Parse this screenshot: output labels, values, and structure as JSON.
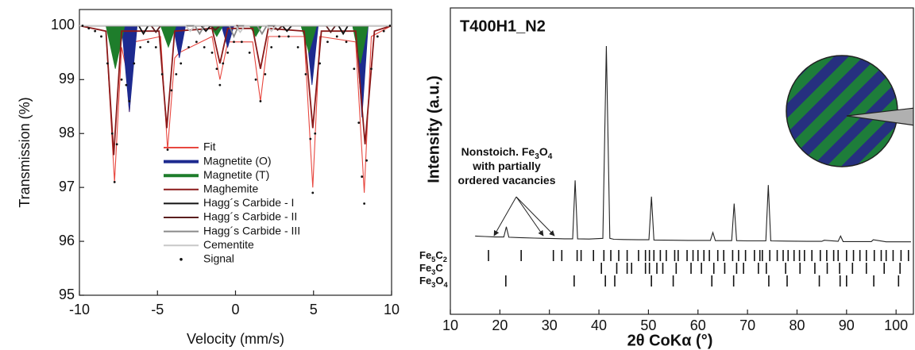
{
  "chart_data": [
    {
      "type": "line",
      "x_label": "Velocity (mm/s)",
      "y_label": "Transmission (%)",
      "xlim": [
        -10,
        10
      ],
      "ylim": [
        95,
        100.3
      ],
      "xticks": [
        -10,
        -5,
        0,
        5,
        10
      ],
      "yticks": [
        95,
        96,
        97,
        98,
        99,
        100
      ],
      "legend": "center",
      "series": [
        {
          "name": "Fit",
          "color": "#e8473f",
          "style": "line",
          "x": [
            -10,
            -8.3,
            -7.75,
            -7.3,
            -7.0,
            -6.8,
            -6.5,
            -4.8,
            -4.35,
            -3.9,
            -3.6,
            -1.5,
            -1.0,
            -0.5,
            1.1,
            1.6,
            2.1,
            4.4,
            4.95,
            5.4,
            7.7,
            8.25,
            8.7,
            10
          ],
          "values": [
            100,
            99.9,
            97.1,
            99.6,
            99.2,
            98.4,
            99.7,
            99.8,
            97.7,
            99.4,
            99.5,
            99.8,
            99.0,
            99.7,
            99.7,
            98.6,
            99.8,
            99.8,
            97.0,
            99.8,
            99.7,
            96.9,
            99.8,
            100
          ]
        },
        {
          "name": "Magnetite (O)",
          "color": "#1d2a8f",
          "style": "fill",
          "x": [
            -10,
            -7.3,
            -6.8,
            -6.3,
            -4.0,
            -3.6,
            -3.2,
            -0.9,
            -0.5,
            -0.1,
            4.5,
            4.9,
            5.3,
            7.7,
            8.1,
            8.5,
            10
          ],
          "values": [
            100,
            100,
            98.4,
            100,
            100,
            99.4,
            100,
            100,
            99.6,
            100,
            100,
            98.9,
            100,
            100,
            98.3,
            100,
            100
          ]
        },
        {
          "name": "Magnetite (T)",
          "color": "#1e7d2b",
          "style": "fill",
          "x": [
            -10,
            -8.3,
            -7.7,
            -7.1,
            -4.8,
            -4.3,
            -3.8,
            -1.6,
            -1.2,
            -0.8,
            0.9,
            1.3,
            1.7,
            4.2,
            4.7,
            5.2,
            7.5,
            8.0,
            8.5,
            10
          ],
          "values": [
            100,
            100,
            99.2,
            100,
            100,
            99.6,
            100,
            100,
            99.8,
            100,
            100,
            99.8,
            100,
            100,
            99.5,
            100,
            100,
            99.3,
            100,
            100
          ]
        },
        {
          "name": "Maghemite",
          "color": "#8b1a1a",
          "style": "line",
          "x": [
            -10,
            -8.3,
            -7.8,
            -7.3,
            -4.9,
            -4.4,
            -3.9,
            -1.5,
            -1.0,
            -0.5,
            1.1,
            1.6,
            2.1,
            4.4,
            4.95,
            5.5,
            7.7,
            8.3,
            8.9,
            10
          ],
          "values": [
            100,
            99.9,
            97.6,
            99.9,
            99.9,
            98.1,
            99.9,
            99.95,
            99.3,
            99.95,
            99.95,
            99.2,
            99.95,
            99.9,
            98.1,
            99.9,
            99.9,
            97.8,
            99.9,
            100
          ]
        },
        {
          "name": "Hagg´s Carbide - I",
          "color": "#111111",
          "style": "line",
          "x": [
            -10,
            -6.2,
            -5.9,
            -5.6,
            -2.2,
            -1.9,
            -1.6,
            3.0,
            3.3,
            3.6,
            6.6,
            6.9,
            7.2,
            10
          ],
          "values": [
            100,
            100,
            99.85,
            100,
            100,
            99.9,
            100,
            100,
            99.9,
            100,
            100,
            99.85,
            100,
            100
          ]
        },
        {
          "name": "Hagg´s Carbide - II",
          "color": "#5a1e1e",
          "style": "line",
          "x": [
            -10,
            -5.4,
            -5.1,
            -4.8,
            -1.6,
            -1.3,
            -1.0,
            2.4,
            2.7,
            3.0,
            5.8,
            6.1,
            6.4,
            10
          ],
          "values": [
            100,
            100,
            99.88,
            100,
            100,
            99.92,
            100,
            100,
            99.92,
            100,
            100,
            99.88,
            100,
            100
          ]
        },
        {
          "name": "Hagg´s Carbide - III",
          "color": "#8a8a8a",
          "style": "line",
          "x": [
            -10,
            -2.6,
            -2.3,
            -2.0,
            -0.4,
            -0.1,
            0.2,
            1.4,
            1.7,
            2.0,
            10
          ],
          "values": [
            100,
            100,
            99.85,
            100,
            100,
            99.8,
            100,
            100,
            99.85,
            100,
            100
          ]
        },
        {
          "name": "Cementite",
          "color": "#c8c8c8",
          "style": "line",
          "x": [
            -10,
            -3.2,
            -2.9,
            -2.6,
            0.0,
            0.3,
            0.6,
            2.0,
            2.3,
            2.6,
            10
          ],
          "values": [
            100,
            100,
            99.9,
            100,
            100,
            99.88,
            100,
            100,
            99.9,
            100,
            100
          ]
        },
        {
          "name": "Signal",
          "color": "#111111",
          "style": "points",
          "x": [
            -9.8,
            -9.4,
            -9.0,
            -8.6,
            -8.2,
            -7.9,
            -7.75,
            -7.6,
            -7.3,
            -7.0,
            -6.8,
            -6.5,
            -6.1,
            -5.6,
            -5.1,
            -4.7,
            -4.35,
            -4.1,
            -3.8,
            -3.5,
            -3.0,
            -2.5,
            -2.0,
            -1.5,
            -1.2,
            -1.0,
            -0.8,
            -0.5,
            -0.1,
            0.4,
            0.9,
            1.3,
            1.6,
            1.9,
            2.3,
            2.8,
            3.4,
            4.0,
            4.5,
            4.8,
            4.95,
            5.1,
            5.4,
            5.9,
            6.5,
            7.1,
            7.6,
            7.9,
            8.1,
            8.25,
            8.4,
            8.7,
            9.1,
            9.5,
            9.9
          ],
          "values": [
            100.0,
            99.95,
            99.9,
            99.8,
            99.3,
            98.0,
            97.1,
            97.8,
            99.0,
            98.9,
            98.6,
            99.3,
            99.6,
            99.7,
            99.6,
            99.1,
            97.7,
            98.8,
            99.1,
            99.3,
            99.6,
            99.7,
            99.6,
            99.5,
            99.2,
            98.9,
            99.3,
            99.5,
            99.7,
            99.7,
            99.5,
            99.0,
            98.6,
            99.1,
            99.6,
            99.8,
            99.8,
            99.6,
            99.1,
            97.9,
            96.9,
            98.0,
            99.3,
            99.7,
            99.8,
            99.7,
            99.2,
            98.2,
            97.2,
            96.7,
            97.5,
            99.2,
            99.8,
            99.9,
            100.0
          ]
        }
      ]
    },
    {
      "type": "line",
      "title": "T400H1_N2",
      "x_label": "2θ CoKα (°)",
      "y_label": "Intensity (a.u.)",
      "xlim": [
        10,
        103.5
      ],
      "ylim": [
        0,
        100
      ],
      "xticks": [
        10,
        20,
        30,
        40,
        50,
        60,
        70,
        80,
        90,
        100
      ],
      "annotation": [
        "Nonstoich. Fe3O4",
        "with partially",
        "ordered vacancies"
      ],
      "series": [
        {
          "color": "#222222",
          "style": "line",
          "x": [
            15,
            17,
            19,
            20.8,
            21.3,
            21.8,
            24,
            27,
            29,
            31,
            33,
            34.7,
            35.2,
            35.7,
            38,
            40.8,
            41.5,
            42.2,
            43,
            45,
            48,
            50.1,
            50.6,
            51.1,
            55,
            58,
            60,
            62.5,
            63,
            63.5,
            65,
            66.8,
            67.3,
            67.8,
            70,
            73.7,
            74.2,
            74.7,
            78,
            82,
            85,
            85.5,
            88.3,
            88.8,
            89.3,
            92,
            95,
            95.4,
            98,
            103
          ],
          "values": [
            5,
            4.8,
            4.6,
            4.6,
            9,
            4.5,
            4.3,
            4.1,
            4,
            3.9,
            3.8,
            3.8,
            29,
            3.8,
            3.7,
            4,
            87,
            4,
            3.6,
            3.5,
            3.4,
            3.4,
            22,
            3.3,
            3.2,
            3.1,
            3.1,
            3.1,
            6.5,
            3,
            3,
            3,
            19,
            3,
            2.9,
            2.9,
            27,
            2.9,
            2.8,
            2.7,
            2.7,
            3.2,
            2.7,
            5,
            2.6,
            2.6,
            2.6,
            3.4,
            2.5,
            2.5
          ]
        }
      ],
      "reference_lines": [
        {
          "name": "Fe5C2",
          "positions": [
            17.7,
            24.3,
            30.8,
            32.5,
            35.6,
            36.4,
            38.9,
            41,
            42.4,
            44,
            45.7,
            48,
            49.4,
            50.2,
            51.1,
            52.4,
            53.6,
            55.3,
            56,
            57.8,
            59,
            60,
            61.2,
            62.3,
            64,
            65.2,
            67,
            68.2,
            69.6,
            71.4,
            72.5,
            73,
            74.5,
            76,
            77.2,
            78.2,
            79.4,
            80.5,
            81.5,
            83,
            84.7,
            86,
            87.4,
            88.3,
            90,
            91.4,
            92.7,
            94,
            95.6,
            97,
            98,
            99.4,
            101,
            102.5
          ]
        },
        {
          "name": "Fe3C",
          "positions": [
            40.5,
            43.6,
            45.7,
            46.6,
            49.4,
            50.2,
            51.7,
            52.9,
            55.6,
            58.6,
            60.7,
            63.2,
            65.4,
            67.8,
            69.2,
            72.2,
            73.8,
            77.7,
            80.6,
            83.6,
            86.1,
            88.6,
            91.2,
            94,
            97.6,
            100.8
          ]
        },
        {
          "name": "Fe3O4",
          "positions": [
            21.2,
            35.0,
            41.3,
            43.2,
            50.6,
            55.0,
            62.8,
            67.2,
            74.3,
            78.0,
            84.5,
            88.7,
            90,
            95.5,
            100.5
          ]
        }
      ]
    }
  ]
}
